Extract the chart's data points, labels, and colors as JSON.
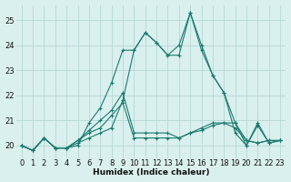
{
  "xlabel": "Humidex (Indice chaleur)",
  "bg_color": "#daf0ee",
  "grid_color": "#b8dbd8",
  "line_color": "#1a7a6e",
  "xlim": [
    -0.5,
    23.5
  ],
  "ylim": [
    19.5,
    25.6
  ],
  "yticks": [
    20,
    21,
    22,
    23,
    24,
    25
  ],
  "xticks": [
    0,
    1,
    2,
    3,
    4,
    5,
    6,
    7,
    8,
    9,
    10,
    11,
    12,
    13,
    14,
    15,
    16,
    17,
    18,
    19,
    20,
    21,
    22,
    23
  ],
  "series": [
    [
      20.0,
      19.8,
      20.3,
      19.9,
      19.9,
      20.1,
      20.3,
      20.5,
      20.7,
      21.8,
      23.8,
      24.5,
      24.1,
      23.6,
      23.6,
      25.3,
      23.8,
      22.8,
      22.1,
      20.9,
      20.0,
      20.9,
      20.1,
      20.2
    ],
    [
      20.0,
      19.8,
      20.3,
      19.9,
      19.9,
      20.2,
      20.6,
      21.0,
      21.4,
      22.1,
      20.5,
      20.5,
      20.5,
      20.5,
      20.3,
      20.5,
      20.6,
      20.8,
      20.9,
      20.7,
      20.2,
      20.1,
      20.2,
      20.2
    ],
    [
      20.0,
      19.8,
      20.3,
      19.9,
      19.9,
      20.2,
      20.5,
      20.7,
      21.2,
      21.7,
      20.3,
      20.3,
      20.3,
      20.3,
      20.3,
      20.5,
      20.7,
      20.9,
      20.9,
      20.9,
      20.2,
      20.1,
      20.2,
      20.2
    ],
    [
      20.0,
      19.8,
      20.3,
      19.9,
      19.9,
      20.0,
      20.9,
      21.5,
      22.5,
      23.8,
      23.8,
      24.5,
      24.1,
      23.6,
      24.0,
      25.3,
      24.0,
      22.8,
      22.1,
      20.5,
      20.0,
      20.8,
      20.1,
      20.2
    ]
  ]
}
